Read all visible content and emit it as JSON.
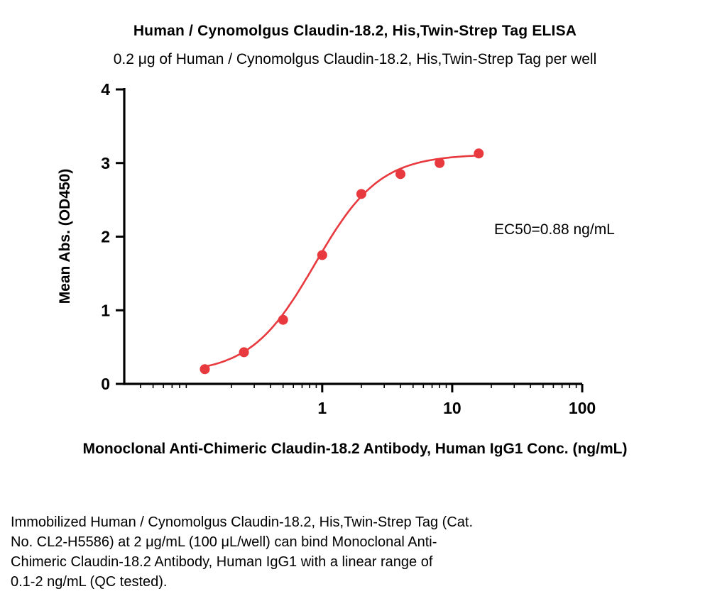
{
  "title": "Human / Cynomolgus Claudin-18.2, His,Twin-Strep Tag ELISA",
  "subtitle": "0.2 μg of Human / Cynomolgus Claudin-18.2, His,Twin-Strep Tag per well",
  "footer": "Immobilized Human / Cynomolgus Claudin-18.2, His,Twin-Strep Tag (Cat.\nNo. CL2-H5586) at 2 μg/mL (100 μL/well) can bind Monoclonal Anti-\nChimeric Claudin-18.2 Antibody, Human IgG1 with a linear range of\n0.1-2 ng/mL (QC tested).",
  "chart_data": {
    "type": "scatter",
    "title": "Human / Cynomolgus Claudin-18.2, His,Twin-Strep Tag ELISA",
    "subtitle": "0.2 μg of Human / Cynomolgus Claudin-18.2, His,Twin-Strep Tag per well",
    "xlabel": "Monoclonal Anti-Chimeric Claudin-18.2 Antibody, Human IgG1 Conc. (ng/mL)",
    "ylabel": "Mean Abs. (OD450)",
    "xscale": "log",
    "x": [
      0.125,
      0.25,
      0.5,
      1,
      2,
      4,
      8,
      16
    ],
    "y": [
      0.2,
      0.43,
      0.87,
      1.75,
      2.58,
      2.85,
      3.0,
      3.13
    ],
    "xlim": [
      0.03,
      100
    ],
    "ylim": [
      0,
      4
    ],
    "xticks": [
      1,
      10,
      100
    ],
    "yticks": [
      0,
      1,
      2,
      3,
      4
    ],
    "grid": false,
    "legend": "none",
    "point_color": "#e8393e",
    "curve_color": "#e8393e",
    "fit": {
      "model": "4PL",
      "bottom": 0.14,
      "top": 3.12,
      "ec50": 0.88,
      "hill": 1.75
    },
    "ec50_label": "EC50=0.88 ng/mL"
  }
}
